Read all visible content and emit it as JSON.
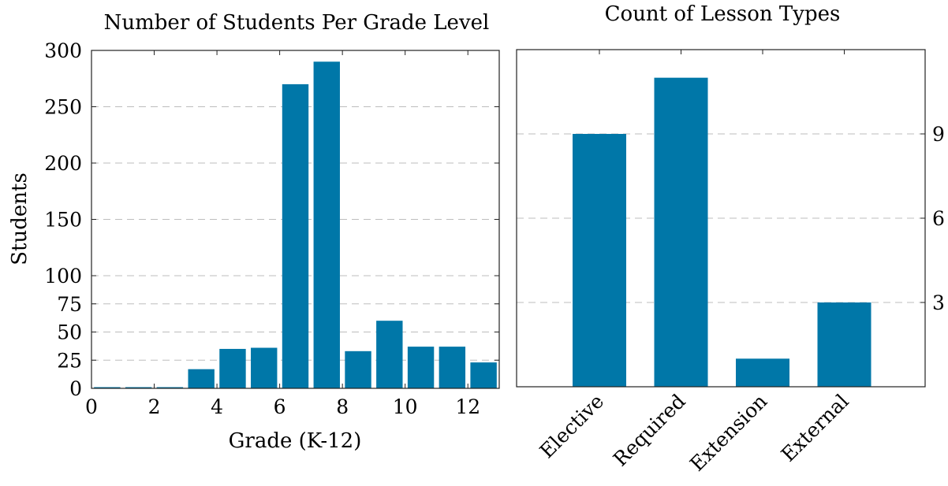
{
  "chart_data": [
    {
      "type": "bar",
      "title": "Number of Students Per Grade Level",
      "xlabel": "Grade (K-12)",
      "ylabel": "Students",
      "xlim": [
        0,
        13
      ],
      "ylim": [
        0,
        300
      ],
      "xticks": [
        "0",
        "2",
        "4",
        "6",
        "8",
        "10",
        "12"
      ],
      "yticks": [
        "0",
        "25",
        "50",
        "75",
        "100",
        "150",
        "200",
        "250",
        "300"
      ],
      "grid": true,
      "x": [
        0,
        1,
        2,
        3,
        4,
        5,
        6,
        7,
        8,
        9,
        10,
        11,
        12
      ],
      "values": [
        0,
        0,
        0,
        17,
        35,
        36,
        270,
        290,
        33,
        60,
        37,
        37,
        23
      ],
      "color": "#0077a8"
    },
    {
      "type": "bar",
      "title": "Count of Lesson Types",
      "xlabel": "",
      "ylabel": "",
      "categories": [
        "Elective",
        "Required",
        "Extension",
        "External"
      ],
      "values": [
        9,
        11,
        1,
        3
      ],
      "ylim": [
        0,
        12
      ],
      "yticks": [
        "3",
        "6",
        "9"
      ],
      "yaxis_side": "right",
      "grid": true,
      "color": "#0077a8"
    }
  ]
}
